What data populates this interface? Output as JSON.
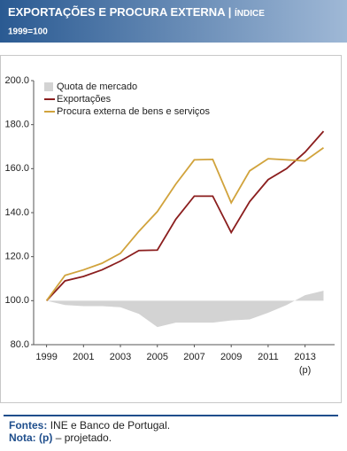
{
  "chart_data": {
    "type": "line",
    "title": "EXPORTAÇÕES E PROCURA EXTERNA |",
    "title_unit": "ÍNDICE",
    "subtitle": "1999=100",
    "x": [
      1999,
      2000,
      2001,
      2002,
      2003,
      2004,
      2005,
      2006,
      2007,
      2008,
      2009,
      2010,
      2011,
      2012,
      2013,
      2014
    ],
    "xlim": [
      1998.3,
      2014.6
    ],
    "xticks": [
      1999,
      2001,
      2003,
      2005,
      2007,
      2009,
      2011,
      2013
    ],
    "xtick_notes": [
      {
        "x": 2013,
        "text": "(p)"
      }
    ],
    "ylim": [
      80,
      200
    ],
    "yticks": [
      {
        "value": 80,
        "label": "80.0"
      },
      {
        "value": 100,
        "label": "100.0"
      },
      {
        "value": 120,
        "label": "120.0"
      },
      {
        "value": 140,
        "label": "140.0"
      },
      {
        "value": 160,
        "label": "160.0"
      },
      {
        "value": 180,
        "label": "180.0"
      },
      {
        "value": 200,
        "label": "200.0"
      }
    ],
    "area_base": 100,
    "legend": "upper left",
    "series": [
      {
        "name": "Quota de mercado",
        "kind": "area",
        "color": "#d3d3d3",
        "values": [
          100,
          98,
          97.5,
          97.5,
          97,
          94,
          88,
          90,
          90,
          90,
          91,
          91.5,
          94.5,
          98,
          102.5,
          104.5
        ]
      },
      {
        "name": "Exportações",
        "kind": "line",
        "color": "#8b1e1e",
        "values": [
          100,
          109,
          111,
          114,
          118,
          122.8,
          123,
          137,
          147.5,
          147.5,
          131,
          145,
          155,
          160,
          167.5,
          177
        ]
      },
      {
        "name": "Procura externa de bens e serviços",
        "kind": "line",
        "color": "#d1a33c",
        "values": [
          100,
          111.5,
          114,
          117,
          121.5,
          131.5,
          140.5,
          153,
          164,
          164.2,
          144.5,
          159,
          164.5,
          164,
          163.5,
          169.5
        ]
      }
    ]
  },
  "footer": {
    "sources_label": "Fontes:",
    "sources": "INE e Banco de Portugal.",
    "note_label": "Nota:",
    "note_marker": "(p)",
    "note": "– projetado."
  }
}
